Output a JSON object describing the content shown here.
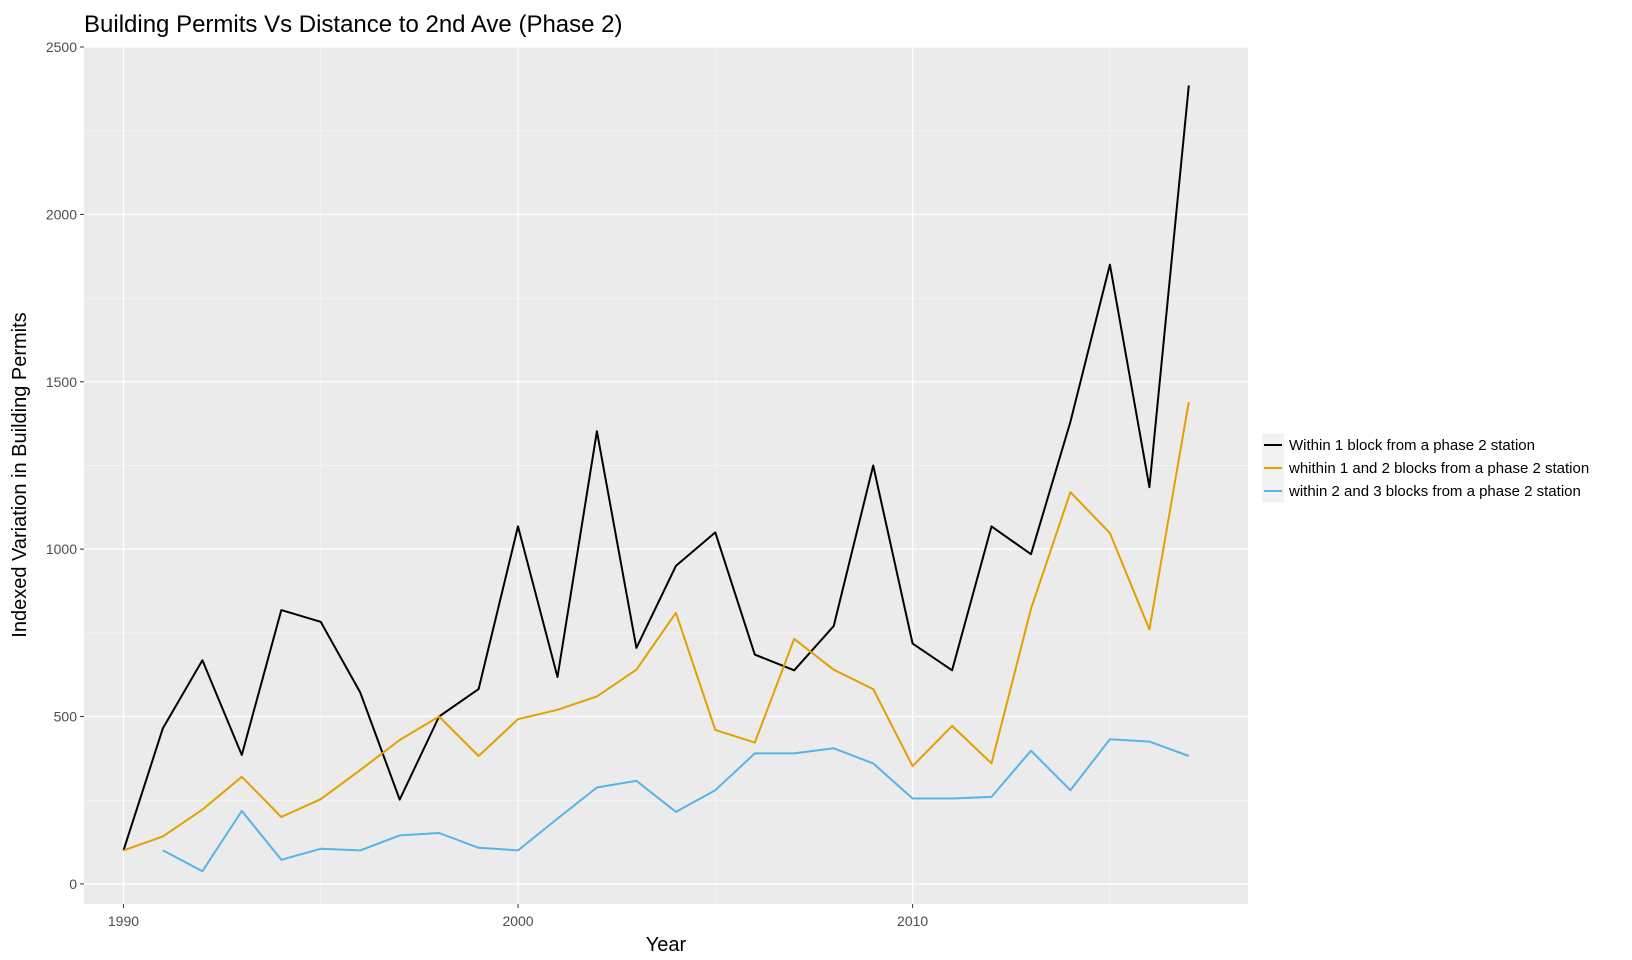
{
  "chart_data": {
    "type": "line",
    "title": "Building Permits Vs Distance to 2nd Ave (Phase 2)",
    "xlabel": "Year",
    "ylabel": "Indexed Variation in Building Permits",
    "xlim": [
      1989,
      2018.5
    ],
    "ylim": [
      -60,
      2500
    ],
    "x_ticks": [
      1990,
      2000,
      2010
    ],
    "y_ticks": [
      0,
      500,
      1000,
      1500,
      2000,
      2500
    ],
    "grid": true,
    "legend_position": "right",
    "series": [
      {
        "name": "Within 1 block from a phase 2 station",
        "color": "#000000",
        "points": [
          [
            1990,
            100
          ],
          [
            1991,
            465
          ],
          [
            1992,
            668
          ],
          [
            1993,
            385
          ],
          [
            1994,
            818
          ],
          [
            1995,
            783
          ],
          [
            1996,
            572
          ],
          [
            1997,
            252
          ],
          [
            1998,
            500
          ],
          [
            1999,
            582
          ],
          [
            2000,
            1068
          ],
          [
            2001,
            618
          ],
          [
            2002,
            1352
          ],
          [
            2003,
            705
          ],
          [
            2004,
            950
          ],
          [
            2005,
            1050
          ],
          [
            2006,
            685
          ],
          [
            2007,
            638
          ],
          [
            2008,
            770
          ],
          [
            2009,
            1250
          ],
          [
            2010,
            718
          ],
          [
            2011,
            638
          ],
          [
            2012,
            1068
          ],
          [
            2013,
            985
          ],
          [
            2014,
            1380
          ],
          [
            2015,
            1850
          ],
          [
            2016,
            1185
          ],
          [
            2017,
            2385
          ]
        ]
      },
      {
        "name": "whithin 1 and 2 blocks from a phase 2 station",
        "color": "#E69F00",
        "points": [
          [
            1990,
            100
          ],
          [
            1991,
            142
          ],
          [
            1992,
            222
          ],
          [
            1993,
            320
          ],
          [
            1994,
            200
          ],
          [
            1995,
            253
          ],
          [
            1996,
            340
          ],
          [
            1997,
            430
          ],
          [
            1998,
            500
          ],
          [
            1999,
            382
          ],
          [
            2000,
            492
          ],
          [
            2001,
            520
          ],
          [
            2002,
            560
          ],
          [
            2003,
            640
          ],
          [
            2004,
            810
          ],
          [
            2005,
            460
          ],
          [
            2006,
            422
          ],
          [
            2007,
            732
          ],
          [
            2008,
            640
          ],
          [
            2009,
            582
          ],
          [
            2010,
            352
          ],
          [
            2011,
            472
          ],
          [
            2012,
            360
          ],
          [
            2013,
            822
          ],
          [
            2014,
            1170
          ],
          [
            2015,
            1048
          ],
          [
            2016,
            760
          ],
          [
            2017,
            1440
          ]
        ]
      },
      {
        "name": "within 2 and 3 blocks from a phase 2 station",
        "color": "#56B4E9",
        "points": [
          [
            1991,
            100
          ],
          [
            1992,
            38
          ],
          [
            1993,
            218
          ],
          [
            1994,
            72
          ],
          [
            1995,
            105
          ],
          [
            1996,
            100
          ],
          [
            1997,
            145
          ],
          [
            1998,
            152
          ],
          [
            1999,
            108
          ],
          [
            2000,
            100
          ],
          [
            2001,
            195
          ],
          [
            2002,
            288
          ],
          [
            2003,
            308
          ],
          [
            2004,
            215
          ],
          [
            2005,
            280
          ],
          [
            2006,
            390
          ],
          [
            2007,
            390
          ],
          [
            2008,
            405
          ],
          [
            2009,
            360
          ],
          [
            2010,
            255
          ],
          [
            2011,
            255
          ],
          [
            2012,
            260
          ],
          [
            2013,
            398
          ],
          [
            2014,
            280
          ],
          [
            2015,
            432
          ],
          [
            2016,
            425
          ],
          [
            2017,
            382
          ]
        ]
      }
    ]
  },
  "colors": {
    "panel_background": "#EBEBEB",
    "grid_major": "#FFFFFF",
    "grid_minor": "#F5F5F5",
    "legend_key_background": "#F2F2F2"
  }
}
